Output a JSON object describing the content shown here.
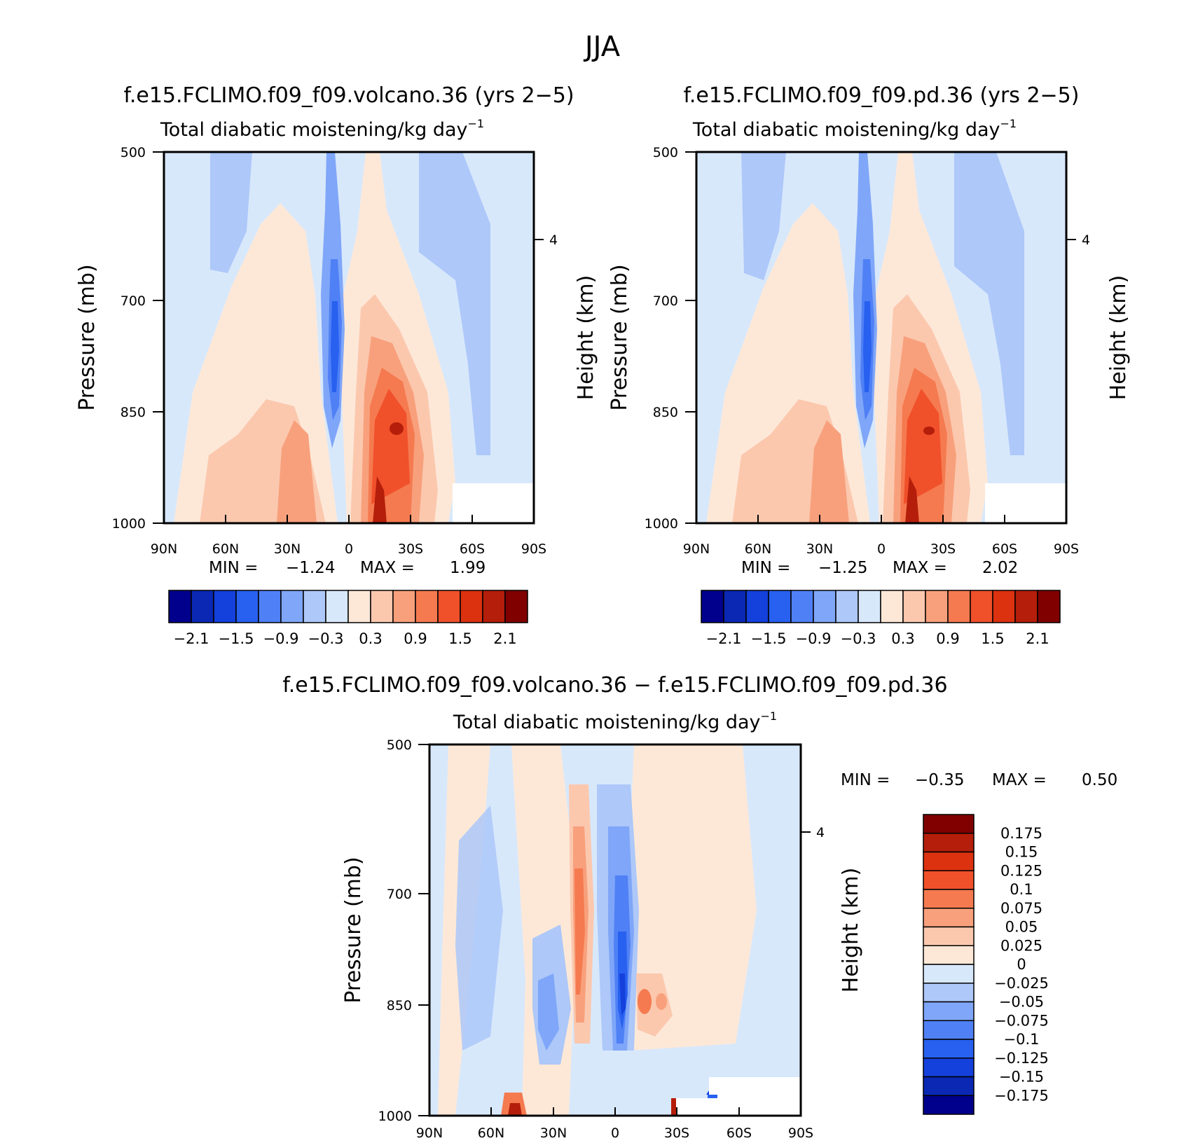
{
  "figure": {
    "title": "JJA"
  },
  "chart_data": [
    {
      "type": "heatmap",
      "id": "volcano",
      "title": "f.e15.FCLIMO.f09_f09.volcano.36 (yrs 2−5)",
      "subtitle": "Total diabatic moistening/kg day",
      "subtitle_sup": "−1",
      "ylabel": "Pressure (mb)",
      "ylabel_right": "Height (km)",
      "x_ticks": [
        "90N",
        "60N",
        "30N",
        "0",
        "30S",
        "60S",
        "90S"
      ],
      "x_range": [
        90,
        -90
      ],
      "y_ticks": [
        "500",
        "700",
        "850",
        "1000"
      ],
      "y_range": [
        500,
        1000
      ],
      "y_right_ticks": [
        "4"
      ],
      "min_label": "MIN =",
      "min_value": "−1.24",
      "max_label": "MAX =",
      "max_value": "1.99",
      "colorbar": {
        "levels": [
          "−2.1",
          "−1.5",
          "−0.9",
          "−0.3",
          "0.3",
          "0.9",
          "1.5",
          "2.1"
        ],
        "colors": [
          "#00008c",
          "#0a28b4",
          "#1440dc",
          "#2860f0",
          "#4f80f5",
          "#7fa6f8",
          "#adc8f9",
          "#d8e8fb",
          "#fde8d8",
          "#fbc8ae",
          "#f8a07c",
          "#f57a50",
          "#f0502a",
          "#dc3210",
          "#b41e0a",
          "#800000"
        ]
      }
    },
    {
      "type": "heatmap",
      "id": "pd",
      "title": "f.e15.FCLIMO.f09_f09.pd.36 (yrs 2−5)",
      "subtitle": "Total diabatic moistening/kg day",
      "subtitle_sup": "−1",
      "ylabel": "Pressure (mb)",
      "ylabel_right": "Height (km)",
      "x_ticks": [
        "90N",
        "60N",
        "30N",
        "0",
        "30S",
        "60S",
        "90S"
      ],
      "x_range": [
        90,
        -90
      ],
      "y_ticks": [
        "500",
        "700",
        "850",
        "1000"
      ],
      "y_range": [
        500,
        1000
      ],
      "y_right_ticks": [
        "4"
      ],
      "min_label": "MIN =",
      "min_value": "−1.25",
      "max_label": "MAX =",
      "max_value": "2.02",
      "colorbar": {
        "levels": [
          "−2.1",
          "−1.5",
          "−0.9",
          "−0.3",
          "0.3",
          "0.9",
          "1.5",
          "2.1"
        ],
        "colors": [
          "#00008c",
          "#0a28b4",
          "#1440dc",
          "#2860f0",
          "#4f80f5",
          "#7fa6f8",
          "#adc8f9",
          "#d8e8fb",
          "#fde8d8",
          "#fbc8ae",
          "#f8a07c",
          "#f57a50",
          "#f0502a",
          "#dc3210",
          "#b41e0a",
          "#800000"
        ]
      }
    },
    {
      "type": "heatmap",
      "id": "diff",
      "title": "f.e15.FCLIMO.f09_f09.volcano.36 − f.e15.FCLIMO.f09_f09.pd.36",
      "subtitle": "Total diabatic moistening/kg day",
      "subtitle_sup": "−1",
      "ylabel": "Pressure (mb)",
      "ylabel_right": "Height (km)",
      "x_ticks": [
        "90N",
        "60N",
        "30N",
        "0",
        "30S",
        "60S",
        "90S"
      ],
      "x_range": [
        90,
        -90
      ],
      "y_ticks": [
        "500",
        "700",
        "850",
        "1000"
      ],
      "y_range": [
        500,
        1000
      ],
      "y_right_ticks": [
        "4"
      ],
      "min_label": "MIN =",
      "min_value": "−0.35",
      "max_label": "MAX =",
      "max_value": "0.50",
      "colorbar": {
        "levels": [
          "0.175",
          "0.15",
          "0.125",
          "0.1",
          "0.075",
          "0.05",
          "0.025",
          "0",
          "−0.025",
          "−0.05",
          "−0.075",
          "−0.1",
          "−0.125",
          "−0.15",
          "−0.175"
        ],
        "colors": [
          "#800000",
          "#b41e0a",
          "#dc3210",
          "#f0502a",
          "#f57a50",
          "#f8a07c",
          "#fbc8ae",
          "#fde8d8",
          "#d8e8fb",
          "#adc8f9",
          "#7fa6f8",
          "#4f80f5",
          "#2860f0",
          "#1440dc",
          "#0a28b4",
          "#00008c"
        ]
      }
    }
  ]
}
